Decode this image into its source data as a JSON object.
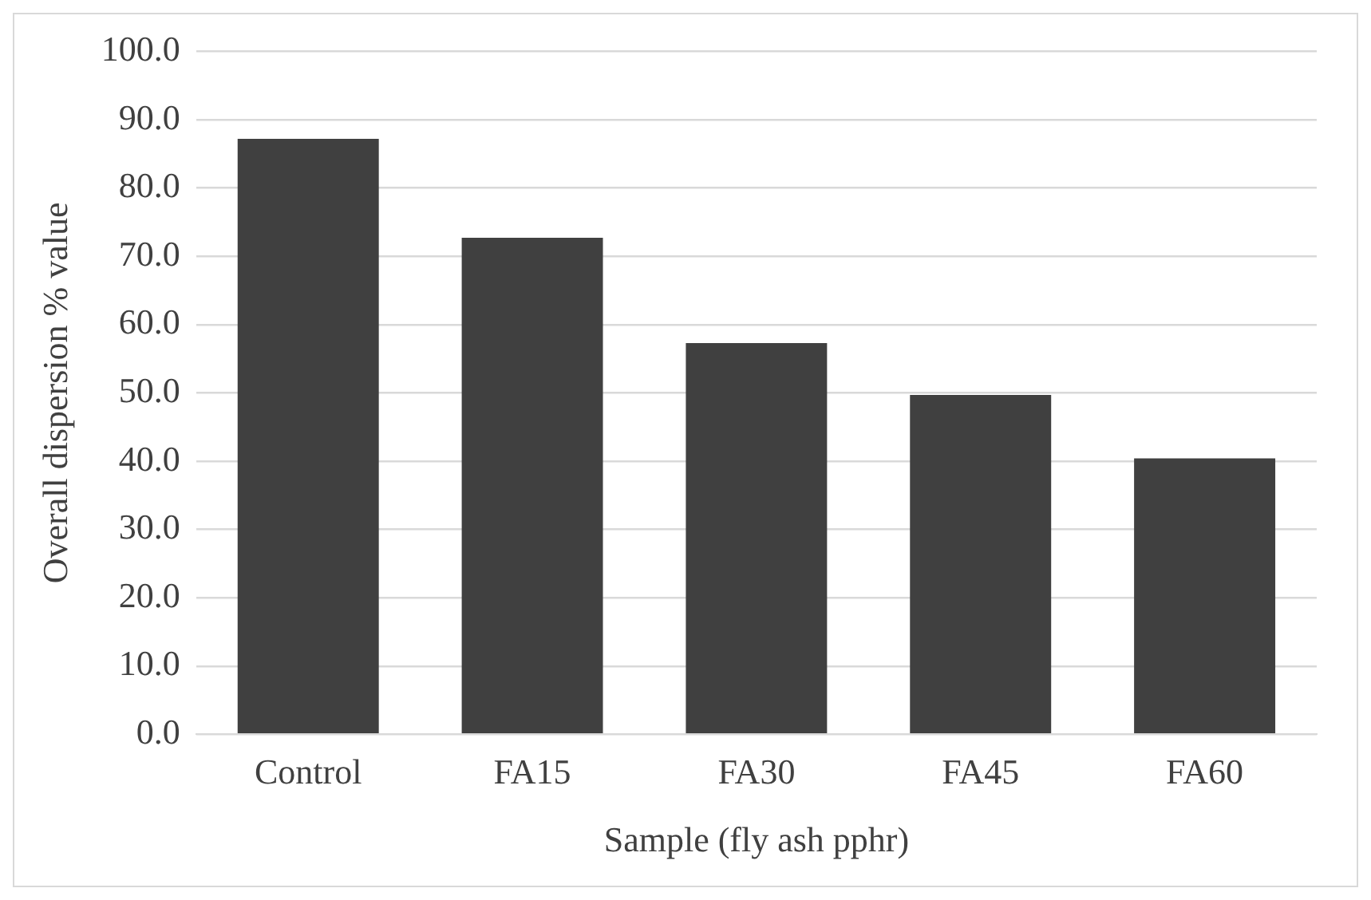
{
  "chart_data": {
    "type": "bar",
    "xlabel": "Sample (fly ash pphr)",
    "ylabel": "Overall dispersion % value",
    "categories": [
      "Control",
      "FA15",
      "FA30",
      "FA45",
      "FA60"
    ],
    "values": [
      87.2,
      72.7,
      57.3,
      49.7,
      40.4
    ],
    "color": "#404040",
    "ylim": [
      0,
      100
    ],
    "yticks": [
      {
        "value": 0,
        "label": "0.0"
      },
      {
        "value": 10,
        "label": "10.0"
      },
      {
        "value": 20,
        "label": "20.0"
      },
      {
        "value": 30,
        "label": "30.0"
      },
      {
        "value": 40,
        "label": "40.0"
      },
      {
        "value": 50,
        "label": "50.0"
      },
      {
        "value": 60,
        "label": "60.0"
      },
      {
        "value": 70,
        "label": "70.0"
      },
      {
        "value": 80,
        "label": "80.0"
      },
      {
        "value": 90,
        "label": "90.0"
      },
      {
        "value": 100,
        "label": "100.0"
      }
    ],
    "grid": "y"
  }
}
